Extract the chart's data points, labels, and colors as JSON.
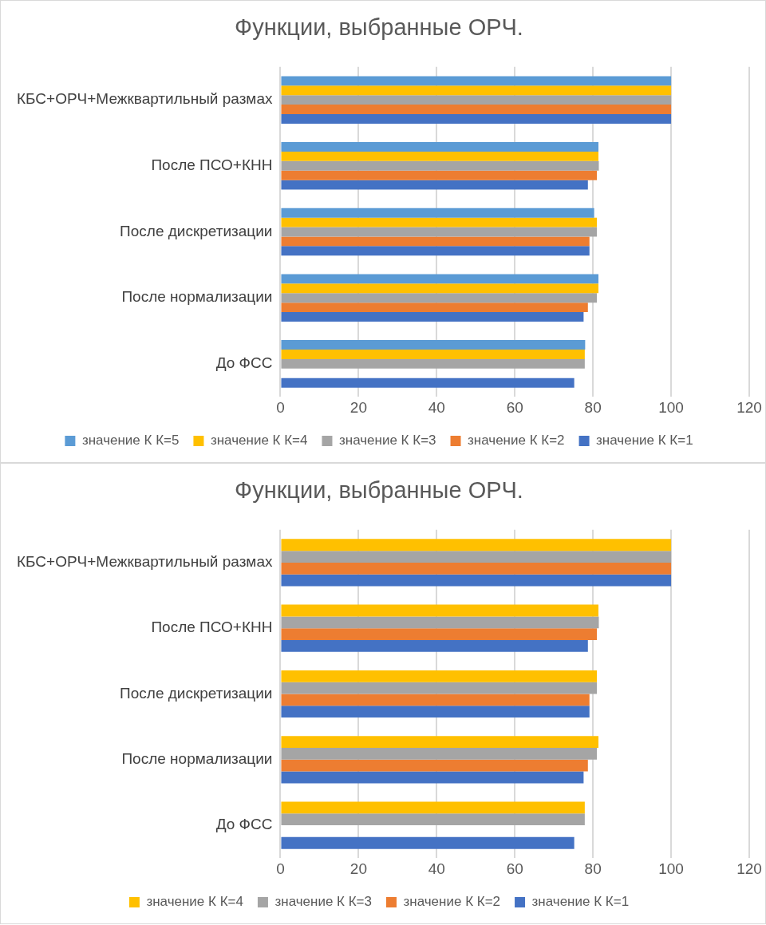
{
  "chart_data": [
    {
      "type": "bar",
      "orientation": "horizontal",
      "title": "Функции, выбранные ОРЧ.",
      "categories": [
        "КБС+ОРЧ+Межквартильный размах",
        "После ПСО+КНН",
        "После дискретизации",
        "После нормализации",
        "До ФСС"
      ],
      "series": [
        {
          "name": "значение К К=5",
          "color": "#5b9bd5",
          "values": [
            100,
            81.4,
            80.3,
            81.4,
            78.0
          ]
        },
        {
          "name": "значение К К=4",
          "color": "#ffc000",
          "values": [
            100,
            81.4,
            81.0,
            81.4,
            77.9
          ]
        },
        {
          "name": "значение К К=3",
          "color": "#a5a5a5",
          "values": [
            100,
            81.5,
            81.0,
            81.0,
            77.9
          ]
        },
        {
          "name": "значение К К=2",
          "color": "#ed7d31",
          "values": [
            100,
            81.0,
            79.1,
            78.7,
            null
          ]
        },
        {
          "name": "значение К К=1",
          "color": "#4472c4",
          "values": [
            100,
            78.7,
            79.1,
            77.6,
            75.2
          ]
        }
      ],
      "xlim": [
        0,
        120
      ],
      "xticks": [
        0,
        20,
        40,
        60,
        80,
        100,
        120
      ],
      "grid": "x",
      "legend": "bottom"
    },
    {
      "type": "bar",
      "orientation": "horizontal",
      "title": "Функции, выбранные ОРЧ.",
      "categories": [
        "КБС+ОРЧ+Межквартильный размах",
        "После ПСО+КНН",
        "После дискретизации",
        "После нормализации",
        "До ФСС"
      ],
      "series": [
        {
          "name": "значение К К=4",
          "color": "#ffc000",
          "values": [
            100,
            81.4,
            81.0,
            81.4,
            77.9
          ]
        },
        {
          "name": "значение К К=3",
          "color": "#a5a5a5",
          "values": [
            100,
            81.5,
            81.0,
            81.0,
            77.9
          ]
        },
        {
          "name": "значение К К=2",
          "color": "#ed7d31",
          "values": [
            100,
            81.0,
            79.1,
            78.7,
            null
          ]
        },
        {
          "name": "значение К К=1",
          "color": "#4472c4",
          "values": [
            100,
            78.7,
            79.1,
            77.6,
            75.2
          ]
        }
      ],
      "xlim": [
        0,
        120
      ],
      "xticks": [
        0,
        20,
        40,
        60,
        80,
        100,
        120
      ],
      "grid": "x",
      "legend": "bottom"
    }
  ]
}
